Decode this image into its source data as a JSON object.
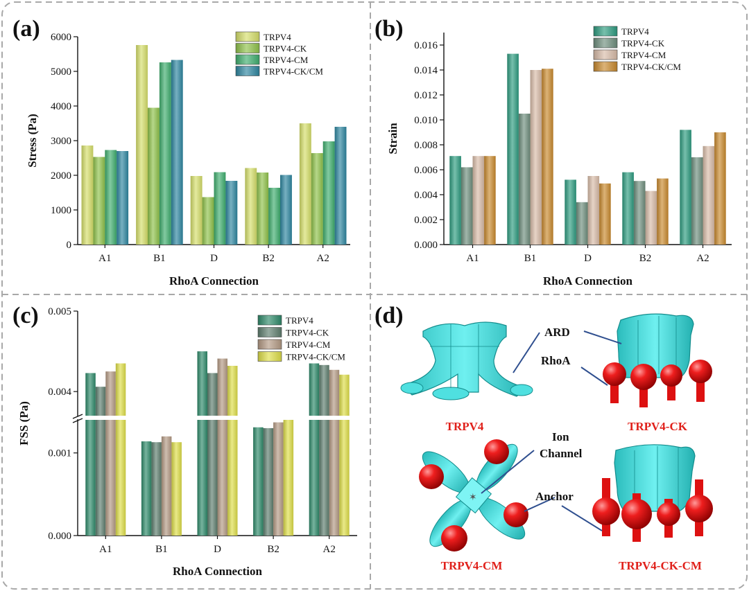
{
  "figure": {
    "panel_labels": [
      "(a)",
      "(b)",
      "(c)",
      "(d)"
    ],
    "colors": {
      "border": "#a8a8a8",
      "a": [
        "#d6df6a",
        "#8fc24a",
        "#3fae6e",
        "#2d86a0"
      ],
      "b": [
        "#2e9c80",
        "#6f8f7e",
        "#d8bca8",
        "#c98a2e"
      ],
      "c": [
        "#2e8a6a",
        "#5e7e6e",
        "#b49a84",
        "#dede48"
      ],
      "protein": "#3fd4d4",
      "anchor": "#dd1111",
      "callout_line": "#2f4f8f",
      "structure_label": "#e0201a"
    }
  },
  "chart_data": [
    {
      "panel": "(a)",
      "type": "bar",
      "title": "",
      "xlabel": "RhoA Connection",
      "ylabel": "Stress (Pa)",
      "categories": [
        "A1",
        "B1",
        "D",
        "B2",
        "A2"
      ],
      "ylim": [
        0,
        6000
      ],
      "yticks": [
        0,
        1000,
        2000,
        3000,
        4000,
        5000,
        6000
      ],
      "legend": "top-right",
      "series": [
        {
          "name": "TRPV4",
          "values": [
            2860,
            5760,
            1980,
            2210,
            3500
          ]
        },
        {
          "name": "TRPV4-CK",
          "values": [
            2530,
            3950,
            1370,
            2080,
            2640
          ]
        },
        {
          "name": "TRPV4-CM",
          "values": [
            2730,
            5260,
            2090,
            1640,
            2980
          ]
        },
        {
          "name": "TRPV4-CK/CM",
          "values": [
            2700,
            5330,
            1840,
            2010,
            3400
          ]
        }
      ]
    },
    {
      "panel": "(b)",
      "type": "bar",
      "title": "",
      "xlabel": "RhoA Connection",
      "ylabel": "Strain",
      "categories": [
        "A1",
        "B1",
        "D",
        "B2",
        "A2"
      ],
      "ylim": [
        0,
        0.017
      ],
      "yticks": [
        "0.000",
        "0.002",
        "0.004",
        "0.006",
        "0.008",
        "0.010",
        "0.012",
        "0.014",
        "0.016"
      ],
      "legend": "top-right",
      "series": [
        {
          "name": "TRPV4",
          "values": [
            0.0071,
            0.0153,
            0.0052,
            0.0058,
            0.0092
          ]
        },
        {
          "name": "TRPV4-CK",
          "values": [
            0.0062,
            0.0105,
            0.0034,
            0.0051,
            0.007
          ]
        },
        {
          "name": "TRPV4-CM",
          "values": [
            0.0071,
            0.014,
            0.0055,
            0.0043,
            0.0079
          ]
        },
        {
          "name": "TRPV4-CK/CM",
          "values": [
            0.0071,
            0.0141,
            0.0049,
            0.0053,
            0.009
          ]
        }
      ]
    },
    {
      "panel": "(c)",
      "type": "bar",
      "title": "",
      "xlabel": "RhoA Connection",
      "ylabel": "FSS (Pa)",
      "categories": [
        "A1",
        "B1",
        "D",
        "B2",
        "A2"
      ],
      "axis_break": true,
      "ylim_lower": [
        0,
        0.0014
      ],
      "ylim_upper": [
        0.0037,
        0.005
      ],
      "yticks": [
        "0.000",
        "0.001",
        "0.004",
        "0.005"
      ],
      "legend": "top-right",
      "series": [
        {
          "name": "TRPV4",
          "values": [
            0.00423,
            0.00114,
            0.0045,
            0.00131,
            0.00435
          ]
        },
        {
          "name": "TRPV4-CK",
          "values": [
            0.00406,
            0.00113,
            0.00423,
            0.0013,
            0.00433
          ]
        },
        {
          "name": "TRPV4-CM",
          "values": [
            0.00425,
            0.0012,
            0.00441,
            0.00137,
            0.00427
          ]
        },
        {
          "name": "TRPV4-CK/CM",
          "values": [
            0.00435,
            0.00113,
            0.00432,
            0.0014,
            0.00421
          ]
        }
      ]
    }
  ],
  "panel_d": {
    "structures": [
      "TRPV4",
      "TRPV4-CK",
      "TRPV4-CM",
      "TRPV4-CK-CM"
    ],
    "callouts": {
      "ard": "ARD",
      "rhoa": "RhoA",
      "ion_line1": "Ion",
      "ion_line2": "Channel",
      "anchor": "Anchor"
    }
  }
}
